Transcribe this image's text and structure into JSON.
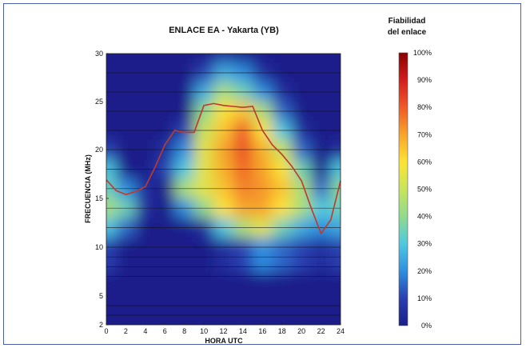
{
  "chart_data": {
    "type": "heatmap",
    "title": "ENLACE EA - Yakarta (YB)",
    "xlabel": "HORA UTC",
    "ylabel": "FRECUENCIA (MHz)",
    "xlim": [
      0,
      24
    ],
    "ylim": [
      2,
      30
    ],
    "x_ticks": [
      "0",
      "2",
      "4",
      "6",
      "8",
      "10",
      "12",
      "14",
      "16",
      "18",
      "20",
      "22",
      "24"
    ],
    "y_ticks": [
      "2",
      "5",
      "10",
      "15",
      "20",
      "25",
      "30"
    ],
    "y_scale": "nonlinear",
    "grid": "horizontal",
    "colorbar": {
      "title_line1": "Fiabilidad",
      "title_line2": "del enlace",
      "labels": [
        "100%",
        "90%",
        "80%",
        "70%",
        "60%",
        "50%",
        "40%",
        "30%",
        "20%",
        "10%",
        "0%"
      ],
      "colors": [
        "#8b0000",
        "#d21e1e",
        "#f05a28",
        "#f7a52a",
        "#fde336",
        "#c8e55a",
        "#8fdb8e",
        "#4fc9e0",
        "#2f8fe0",
        "#2a3fb0",
        "#1a1f8a"
      ]
    },
    "muf_line": {
      "color": "#c0392b",
      "x": [
        0,
        1,
        2,
        3,
        4,
        5,
        6,
        7,
        8,
        9,
        10,
        11,
        12,
        13,
        14,
        15,
        16,
        17,
        18,
        19,
        20,
        21,
        22,
        23,
        24
      ],
      "y": [
        16.9,
        15.8,
        15.4,
        15.7,
        16.2,
        18.2,
        20.5,
        22.0,
        21.8,
        21.8,
        24.6,
        24.8,
        24.6,
        24.5,
        24.4,
        24.5,
        22.0,
        20.5,
        19.5,
        18.3,
        16.8,
        14.0,
        11.4,
        12.8,
        16.8
      ]
    },
    "reliability_grid": {
      "x": [
        0,
        2,
        4,
        6,
        8,
        10,
        12,
        14,
        16,
        18,
        20,
        22,
        24
      ],
      "y": [
        2,
        5,
        10,
        12,
        14,
        16,
        18,
        20,
        22,
        24,
        26,
        28,
        30
      ],
      "z": [
        [
          0,
          0,
          0,
          0,
          0,
          0,
          0,
          0,
          0,
          0,
          0,
          0,
          0
        ],
        [
          0,
          0,
          0,
          0,
          0,
          0,
          0,
          0,
          0,
          0,
          0,
          0,
          0
        ],
        [
          0.1,
          0,
          0,
          0,
          0,
          0,
          0.05,
          0.1,
          0.2,
          0.15,
          0.1,
          0.05,
          0.1
        ],
        [
          0.3,
          0.15,
          0,
          0,
          0,
          0.05,
          0.3,
          0.45,
          0.55,
          0.35,
          0.25,
          0.2,
          0.25
        ],
        [
          0.45,
          0.35,
          0.05,
          0,
          0.2,
          0.4,
          0.6,
          0.7,
          0.7,
          0.6,
          0.45,
          0.3,
          0.35
        ],
        [
          0.35,
          0.2,
          0.05,
          0,
          0.45,
          0.55,
          0.65,
          0.75,
          0.72,
          0.65,
          0.45,
          0.15,
          0.4
        ],
        [
          0.3,
          0,
          0,
          0.1,
          0.3,
          0.55,
          0.68,
          0.78,
          0.7,
          0.6,
          0.35,
          0,
          0.3
        ],
        [
          0.1,
          0,
          0,
          0.05,
          0.2,
          0.55,
          0.7,
          0.82,
          0.68,
          0.5,
          0.15,
          0,
          0.05
        ],
        [
          0,
          0,
          0,
          0,
          0.1,
          0.5,
          0.65,
          0.8,
          0.6,
          0.3,
          0.05,
          0,
          0
        ],
        [
          0,
          0,
          0,
          0,
          0,
          0.4,
          0.6,
          0.65,
          0.45,
          0.15,
          0,
          0,
          0
        ],
        [
          0,
          0,
          0,
          0,
          0,
          0.25,
          0.45,
          0.35,
          0.2,
          0.05,
          0,
          0,
          0
        ],
        [
          0,
          0,
          0,
          0,
          0,
          0.1,
          0.25,
          0.2,
          0.05,
          0,
          0,
          0,
          0
        ],
        [
          0,
          0,
          0,
          0,
          0,
          0,
          0.05,
          0,
          0,
          0,
          0,
          0,
          0
        ]
      ]
    }
  }
}
